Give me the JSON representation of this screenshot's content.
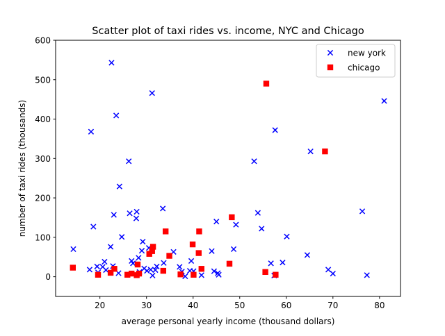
{
  "chart_data": {
    "type": "scatter",
    "title": "Scatter plot of taxi rides vs. income, NYC and Chicago",
    "xlabel": "average personal yearly income (thousand dollars)",
    "ylabel": "number of taxi rides (thousands)",
    "xlim": [
      10.5,
      84.5
    ],
    "ylim": [
      -50,
      600
    ],
    "xticks": [
      20,
      30,
      40,
      50,
      60,
      70,
      80
    ],
    "yticks": [
      0,
      100,
      200,
      300,
      400,
      500,
      600
    ],
    "xtick_labels": [
      "20",
      "30",
      "40",
      "50",
      "60",
      "70",
      "80"
    ],
    "ytick_labels": [
      "0",
      "100",
      "200",
      "300",
      "400",
      "500",
      "600"
    ],
    "grid": false,
    "legend_position": "upper right",
    "series": [
      {
        "name": "new york",
        "marker": "x",
        "color": "#0000ff",
        "points": [
          [
            14.3,
            70
          ],
          [
            17.8,
            18
          ],
          [
            18.1,
            368
          ],
          [
            18.6,
            127
          ],
          [
            19.4,
            26
          ],
          [
            19.6,
            11
          ],
          [
            20.6,
            25
          ],
          [
            21.0,
            38
          ],
          [
            21.3,
            17
          ],
          [
            22.3,
            76
          ],
          [
            22.5,
            543
          ],
          [
            22.8,
            27
          ],
          [
            23.0,
            157
          ],
          [
            23.5,
            409
          ],
          [
            24.0,
            9
          ],
          [
            24.2,
            229
          ],
          [
            24.7,
            101
          ],
          [
            26.2,
            293
          ],
          [
            26.4,
            161
          ],
          [
            26.8,
            40
          ],
          [
            27.1,
            34
          ],
          [
            27.8,
            148
          ],
          [
            27.9,
            165
          ],
          [
            28.3,
            48
          ],
          [
            28.5,
            12
          ],
          [
            29.0,
            66
          ],
          [
            29.2,
            89
          ],
          [
            29.5,
            21
          ],
          [
            30.1,
            15
          ],
          [
            30.5,
            73
          ],
          [
            30.9,
            18
          ],
          [
            31.2,
            466
          ],
          [
            31.3,
            3
          ],
          [
            31.9,
            17
          ],
          [
            32.2,
            26
          ],
          [
            33.5,
            173
          ],
          [
            33.7,
            35
          ],
          [
            35.8,
            63
          ],
          [
            37.1,
            25
          ],
          [
            37.6,
            13
          ],
          [
            38.3,
            1
          ],
          [
            39.3,
            15
          ],
          [
            39.6,
            40
          ],
          [
            40.1,
            14
          ],
          [
            41.8,
            4
          ],
          [
            44.0,
            65
          ],
          [
            44.5,
            14
          ],
          [
            45.0,
            140
          ],
          [
            45.3,
            9
          ],
          [
            45.5,
            5
          ],
          [
            48.7,
            70
          ],
          [
            49.2,
            132
          ],
          [
            53.1,
            293
          ],
          [
            53.9,
            162
          ],
          [
            54.7,
            122
          ],
          [
            56.7,
            34
          ],
          [
            57.4,
            3
          ],
          [
            57.6,
            372
          ],
          [
            59.2,
            36
          ],
          [
            60.1,
            102
          ],
          [
            64.5,
            55
          ],
          [
            65.2,
            318
          ],
          [
            69.0,
            18
          ],
          [
            70.0,
            8
          ],
          [
            76.3,
            166
          ],
          [
            77.3,
            4
          ],
          [
            81.0,
            446
          ]
        ]
      },
      {
        "name": "chicago",
        "marker": "s",
        "color": "#ff0000",
        "points": [
          [
            14.2,
            23
          ],
          [
            19.6,
            5
          ],
          [
            22.3,
            10
          ],
          [
            23.1,
            20
          ],
          [
            25.9,
            5
          ],
          [
            26.8,
            8
          ],
          [
            27.9,
            4
          ],
          [
            28.1,
            31
          ],
          [
            28.4,
            8
          ],
          [
            30.6,
            58
          ],
          [
            31.2,
            65
          ],
          [
            31.4,
            76
          ],
          [
            33.6,
            15
          ],
          [
            34.1,
            115
          ],
          [
            34.9,
            53
          ],
          [
            37.3,
            6
          ],
          [
            39.9,
            82
          ],
          [
            40.1,
            5
          ],
          [
            41.2,
            60
          ],
          [
            41.3,
            115
          ],
          [
            41.8,
            20
          ],
          [
            47.8,
            33
          ],
          [
            48.3,
            151
          ],
          [
            55.5,
            12
          ],
          [
            55.7,
            490
          ],
          [
            57.7,
            5
          ],
          [
            68.3,
            318
          ]
        ]
      }
    ]
  }
}
